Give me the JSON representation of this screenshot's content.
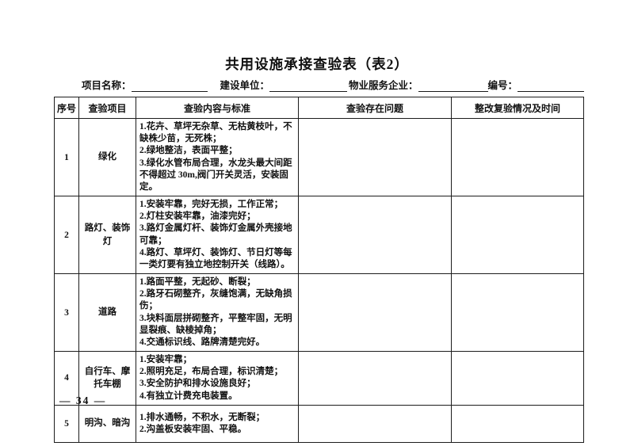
{
  "page": {
    "title": "共用设施承接查验表（表2）",
    "page_number": "— 34 —"
  },
  "header_fields": {
    "project_name_label": "项目名称：",
    "construction_unit_label": "建设单位：",
    "property_company_label": "物业服务企业：",
    "serial_number_label": "编号："
  },
  "table": {
    "columns": [
      "序号",
      "查验项目",
      "查验内容与标准",
      "查验存在问题",
      "整改复验情况及时间"
    ],
    "rows": [
      {
        "no": "1",
        "item": "绿化",
        "content": [
          "1.花卉、草坪无杂草、无枯黄枝叶，不缺株少苗，无死株；",
          "2.绿地整洁，表面平整；",
          "3.绿化水管布局合理，水龙头最大间距不得超过 30m,阀门开关灵活，安装固定。"
        ],
        "problem": "",
        "rectification": ""
      },
      {
        "no": "2",
        "item": "路灯、装饰灯",
        "content": [
          "1.安装牢靠，完好无损，工作正常；",
          "2.灯柱安装牢靠，油漆完好；",
          "3.路灯金属灯杆、装饰灯金属外壳接地可靠；",
          "4.路灯、草坪灯、装饰灯、节日灯等每一类灯要有独立地控制开关（线路）。"
        ],
        "problem": "",
        "rectification": ""
      },
      {
        "no": "3",
        "item": "道路",
        "content": [
          "1.路面平整，无起砂、断裂；",
          "2.路牙石砌整齐，灰缝饱满，无缺角损伤；",
          "3.块料面层拼砌整齐，平整牢固，无明显裂痕、缺棱掉角；",
          "4.交通标识线、路牌清楚完好。"
        ],
        "problem": "",
        "rectification": ""
      },
      {
        "no": "4",
        "item": "自行车、摩托车棚",
        "content": [
          "1.安装牢靠；",
          "2.照明充足，布局合理，标识清楚；",
          "3.安全防护和排水设施良好；",
          "4.有独立计费充电装置。"
        ],
        "problem": "",
        "rectification": ""
      },
      {
        "no": "5",
        "item": "明沟、暗沟",
        "content": [
          "1.排水通畅，不积水，无断裂；",
          "2.沟盖板安装牢固、平稳。"
        ],
        "problem": "",
        "rectification": ""
      }
    ]
  }
}
